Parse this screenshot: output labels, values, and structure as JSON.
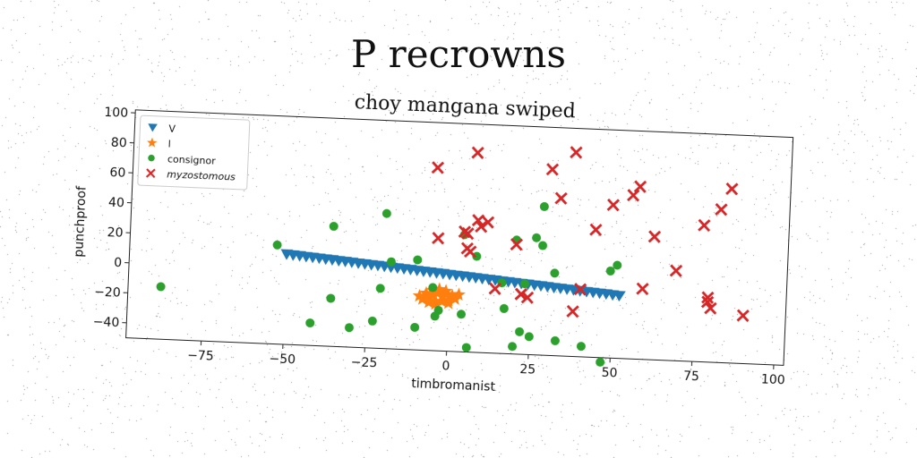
{
  "figure": {
    "suptitle": "P recrowns"
  },
  "colors": {
    "V": "#1f77b4",
    "l": "#ff7f0e",
    "consignor": "#2ca02c",
    "myzostomous": "#d62728"
  },
  "chart_data": {
    "type": "scatter",
    "title": "choy mangana swiped",
    "xlabel": "timbromanist",
    "ylabel": "punchproof",
    "xlim": [
      -98,
      103
    ],
    "ylim": [
      -50,
      102
    ],
    "xticks": [
      -75,
      -50,
      -25,
      0,
      25,
      50,
      75,
      100
    ],
    "yticks": [
      -40,
      -20,
      0,
      20,
      40,
      60,
      80,
      100
    ],
    "xtick_labels": [
      "−75",
      "−50",
      "−25",
      "0",
      "25",
      "50",
      "75",
      "100"
    ],
    "ytick_labels": [
      "−40",
      "−20",
      "0",
      "20",
      "40",
      "60",
      "80",
      "100"
    ],
    "grid": false,
    "legend_position": "top-left",
    "series": [
      {
        "name": "V",
        "marker": "triangle-down",
        "x": [
          -50,
          -48,
          -46,
          -44,
          -42,
          -40,
          -38,
          -36,
          -34,
          -32,
          -30,
          -28,
          -26,
          -24,
          -22,
          -20,
          -18,
          -16,
          -14,
          -12,
          -10,
          -8,
          -6,
          -4,
          -2,
          0,
          2,
          4,
          6,
          8,
          10,
          12,
          14,
          16,
          18,
          20,
          22,
          24,
          26,
          28,
          30,
          32,
          34,
          36,
          38,
          40,
          42,
          44,
          46,
          48,
          50,
          52
        ],
        "y": [
          10.0,
          9.6,
          9.3,
          8.9,
          8.6,
          8.2,
          7.8,
          7.5,
          7.1,
          6.8,
          6.4,
          6.0,
          5.7,
          5.3,
          5.0,
          4.6,
          4.2,
          3.9,
          3.5,
          3.2,
          2.8,
          2.4,
          2.1,
          1.7,
          1.4,
          1.0,
          0.6,
          0.3,
          -0.1,
          -0.4,
          -0.8,
          -1.2,
          -1.5,
          -1.9,
          -2.2,
          -2.6,
          -3.0,
          -3.3,
          -3.7,
          -4.0,
          -4.4,
          -4.8,
          -5.1,
          -5.5,
          -5.8,
          -6.2,
          -6.6,
          -6.9,
          -7.3,
          -7.6,
          -8.0,
          -8.4
        ]
      },
      {
        "name": "l",
        "marker": "star",
        "x": [
          -8,
          -6,
          -4,
          -2,
          0,
          2,
          -7,
          -5,
          -3,
          -1,
          1,
          -6,
          -4,
          -2,
          0,
          -5,
          -3,
          -1,
          -9,
          3
        ],
        "y": [
          -16,
          -15,
          -17,
          -14,
          -16,
          -15,
          -12,
          -13,
          -11,
          -12,
          -13,
          -18,
          -19,
          -17,
          -18,
          -10,
          -9,
          -10,
          -14,
          -12
        ]
      },
      {
        "name": "consignor",
        "marker": "circle",
        "x": [
          -88,
          -53,
          -36,
          -36,
          -42,
          -30,
          -20,
          -21,
          -23,
          -18,
          -10,
          -10,
          -5,
          -3,
          -4,
          4,
          4,
          6,
          8,
          16,
          17,
          20,
          20,
          22,
          23,
          25,
          26,
          28,
          28,
          32,
          33,
          41,
          47,
          49,
          51
        ],
        "y": [
          -15,
          16,
          30,
          -18,
          -35,
          -37,
          40,
          -10,
          -32,
          8,
          10,
          -35,
          -8,
          -23,
          -27,
          28,
          -25,
          -47,
          14,
          -3,
          -20,
          -45,
          26,
          -35,
          -3,
          -38,
          28,
          23,
          49,
          5,
          -40,
          -43,
          -53,
          8,
          12
        ]
      },
      {
        "name": "myzostomous",
        "marker": "x",
        "x": [
          -5,
          7,
          -4,
          4,
          5,
          5,
          6,
          8,
          9,
          11,
          14,
          20,
          22,
          22,
          24,
          30,
          33,
          37,
          38,
          40,
          44,
          49,
          55,
          57,
          59,
          62,
          69,
          77,
          79,
          79,
          80,
          82,
          85,
          90
        ],
        "y": [
          72,
          83,
          25,
          30,
          29,
          19,
          17,
          38,
          34,
          37,
          -7,
          23,
          -10,
          -10,
          -12,
          74,
          55,
          86,
          -20,
          -5,
          35,
          52,
          59,
          65,
          -3,
          32,
          10,
          41,
          -10,
          -7,
          -14,
          52,
          66,
          -18
        ]
      }
    ]
  }
}
